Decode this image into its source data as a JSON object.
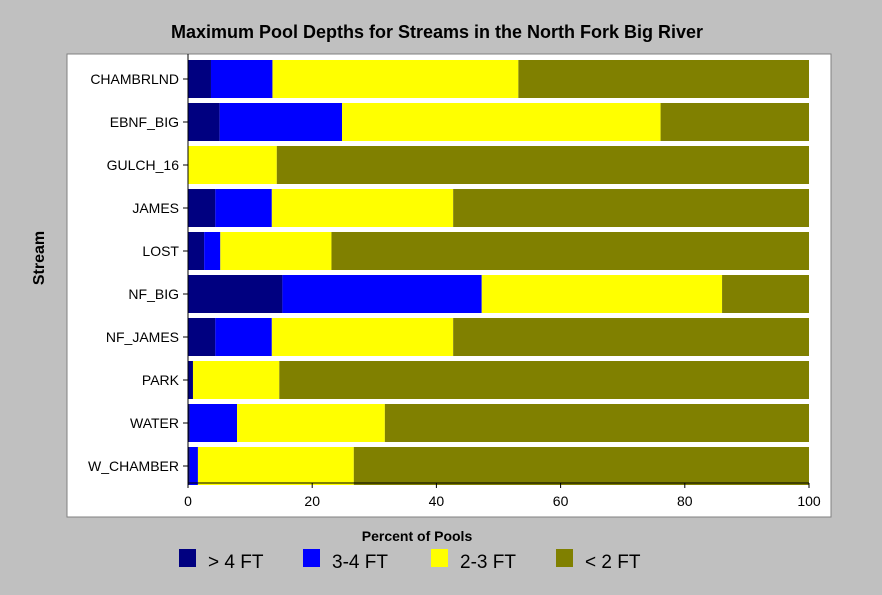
{
  "chart_data": {
    "type": "bar",
    "orientation": "horizontal",
    "stacked": true,
    "title": "Maximum Pool Depths for Streams in the North Fork Big River",
    "xlabel": "Percent of Pools",
    "ylabel": "Stream",
    "xlim": [
      0,
      100
    ],
    "xticks": [
      0,
      20,
      40,
      60,
      80,
      100
    ],
    "grid": false,
    "legend_position": "bottom",
    "categories": [
      "CHAMBRLND",
      "EBNF_BIG",
      "GULCH_16",
      "JAMES",
      "LOST",
      "NF_BIG",
      "NF_JAMES",
      "PARK",
      "WATER",
      "W_CHAMBER"
    ],
    "series": [
      {
        "name": "> 4 FT",
        "color": "#000080",
        "values": [
          3.7,
          5.1,
          0,
          4.4,
          2.6,
          15.2,
          4.4,
          0.8,
          0.3,
          0.3
        ]
      },
      {
        "name": "3-4 FT",
        "color": "#0000ff",
        "values": [
          9.9,
          19.7,
          0,
          9.1,
          2.6,
          32.1,
          9.1,
          0,
          7.6,
          1.3
        ]
      },
      {
        "name": "2-3 FT",
        "color": "#ffff00",
        "values": [
          39.6,
          51.3,
          14.3,
          29.2,
          17.9,
          38.7,
          29.2,
          13.9,
          23.8,
          25.1
        ]
      },
      {
        "name": "< 2 FT",
        "color": "#808000",
        "values": [
          46.8,
          23.9,
          85.7,
          57.3,
          76.9,
          14.0,
          57.3,
          85.3,
          68.3,
          73.3
        ]
      }
    ]
  }
}
